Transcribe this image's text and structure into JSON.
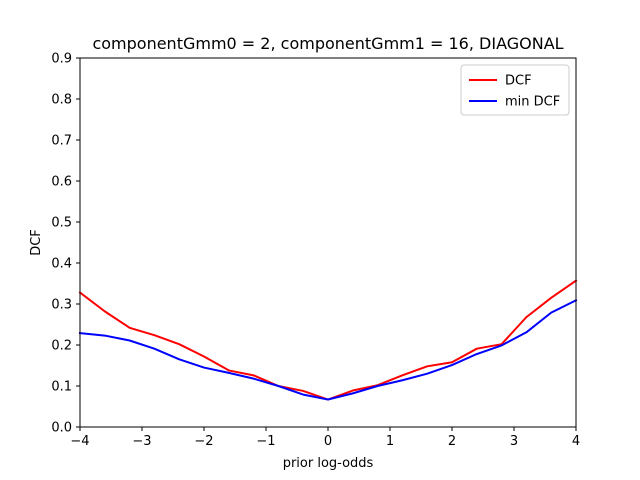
{
  "chart_data": {
    "type": "line",
    "title": "componentGmm0 = 2, componentGmm1 = 16, DIAGONAL",
    "xlabel": "prior log-odds",
    "ylabel": "DCF",
    "xlim": [
      -4,
      4
    ],
    "ylim": [
      0,
      0.9
    ],
    "xticks": [
      -4,
      -3,
      -2,
      -1,
      0,
      1,
      2,
      3,
      4
    ],
    "xtick_labels": [
      "−4",
      "−3",
      "−2",
      "−1",
      "0",
      "1",
      "2",
      "3",
      "4"
    ],
    "yticks": [
      0.0,
      0.1,
      0.2,
      0.3,
      0.4,
      0.5,
      0.6,
      0.7,
      0.8,
      0.9
    ],
    "ytick_labels": [
      "0.0",
      "0.1",
      "0.2",
      "0.3",
      "0.4",
      "0.5",
      "0.6",
      "0.7",
      "0.8",
      "0.9"
    ],
    "grid": false,
    "legend_position": "top-right",
    "x": [
      -4.0,
      -3.6,
      -3.2,
      -2.8,
      -2.4,
      -2.0,
      -1.6,
      -1.2,
      -0.8,
      -0.4,
      0.0,
      0.4,
      0.8,
      1.2,
      1.6,
      2.0,
      2.4,
      2.8,
      3.2,
      3.6,
      4.0
    ],
    "series": [
      {
        "name": "DCF",
        "color": "#ff0000",
        "values": [
          0.328,
          0.282,
          0.242,
          0.224,
          0.202,
          0.172,
          0.138,
          0.126,
          0.1,
          0.088,
          0.067,
          0.089,
          0.102,
          0.126,
          0.148,
          0.158,
          0.191,
          0.202,
          0.268,
          0.315,
          0.357
        ]
      },
      {
        "name": "min DCF",
        "color": "#0000ff",
        "values": [
          0.229,
          0.223,
          0.211,
          0.191,
          0.165,
          0.145,
          0.132,
          0.118,
          0.1,
          0.079,
          0.067,
          0.082,
          0.1,
          0.114,
          0.13,
          0.151,
          0.178,
          0.199,
          0.231,
          0.279,
          0.309
        ]
      }
    ]
  }
}
